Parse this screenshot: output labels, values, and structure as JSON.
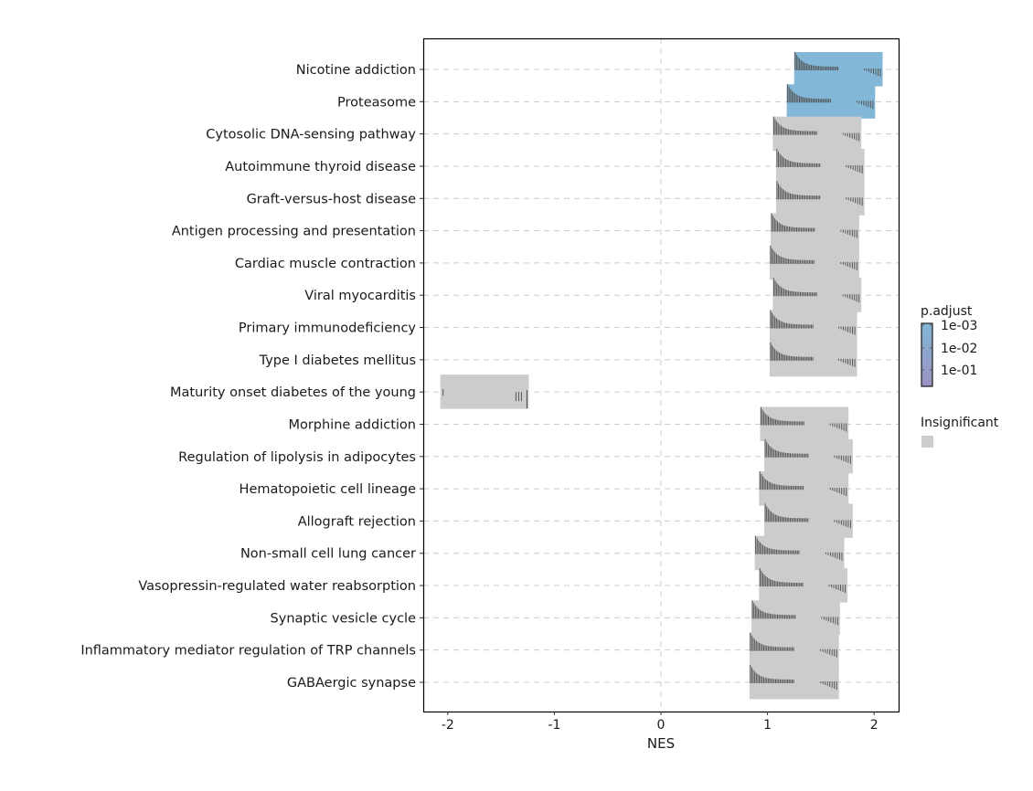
{
  "chart_data": {
    "type": "bar",
    "title": "",
    "xlabel": "NES",
    "ylabel": "",
    "xlim": [
      -2.23,
      2.23
    ],
    "xticks": [
      -2,
      -1,
      0,
      1,
      2
    ],
    "xtick_labels": [
      "-2",
      "-1",
      "0",
      "1",
      "2"
    ],
    "grid": "dashed at each category and at x=0",
    "colors": {
      "significant": "#83b7d7",
      "insignificant": "#cccccc",
      "low_padj": "#83b7d7",
      "high_padj": "#9a92c2"
    },
    "legend": {
      "title": "p.adjust",
      "placement": "right",
      "ticks": [
        "1e-03",
        "1e-02",
        "1e-01"
      ],
      "insignificant_label": "Insignificant"
    },
    "categories": [
      "Nicotine addiction",
      "Proteasome",
      "Cytosolic DNA-sensing pathway",
      "Autoimmune thyroid disease",
      "Graft-versus-host disease",
      "Antigen processing and presentation",
      "Cardiac muscle contraction",
      "Viral myocarditis",
      "Primary immunodeficiency",
      "Type I diabetes mellitus",
      "Maturity onset diabetes of the young",
      "Morphine addiction",
      "Regulation of lipolysis in adipocytes",
      "Hematopoietic cell lineage",
      "Allograft rejection",
      "Non-small cell lung cancer",
      "Vasopressin-regulated water reabsorption",
      "Synaptic vesicle cycle",
      "Inflammatory mediator regulation of TRP channels",
      "GABAergic synapse"
    ],
    "range_min": [
      1.25,
      1.18,
      1.05,
      1.08,
      1.08,
      1.03,
      1.02,
      1.05,
      1.02,
      1.02,
      -2.07,
      0.93,
      0.97,
      0.92,
      0.97,
      0.88,
      0.92,
      0.85,
      0.83,
      0.83
    ],
    "range_max": [
      2.08,
      2.01,
      1.88,
      1.91,
      1.91,
      1.86,
      1.86,
      1.88,
      1.84,
      1.84,
      -1.24,
      1.76,
      1.8,
      1.76,
      1.8,
      1.72,
      1.75,
      1.68,
      1.67,
      1.67
    ],
    "significant": [
      true,
      true,
      false,
      false,
      false,
      false,
      false,
      false,
      false,
      false,
      false,
      false,
      false,
      false,
      false,
      false,
      false,
      false,
      false,
      false
    ]
  }
}
